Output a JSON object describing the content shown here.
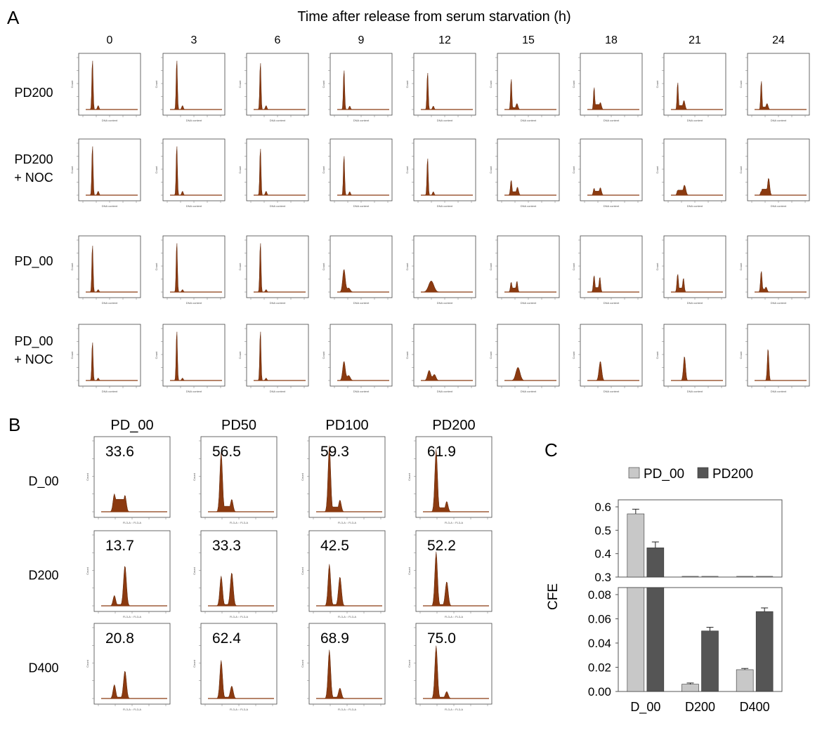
{
  "panels": {
    "a": "A",
    "b": "B",
    "c": "C"
  },
  "panel_a": {
    "title": "Time after release from serum starvation (h)",
    "time_points": [
      "0",
      "3",
      "6",
      "9",
      "12",
      "15",
      "18",
      "21",
      "24"
    ],
    "rows": [
      "PD200",
      "PD200\n+ NOC",
      "PD_00",
      "PD_00\n+ NOC"
    ],
    "mini_xlabel": "DNA content",
    "mini_ylabel": "Count"
  },
  "panel_b": {
    "columns": [
      "PD_00",
      "PD50",
      "PD100",
      "PD200"
    ],
    "rows": [
      "D_00",
      "D200",
      "D400"
    ],
    "mini_xlabel": "FL3-A :: FL3-A",
    "mini_ylabel": "Count",
    "values": [
      [
        "33.6",
        "56.5",
        "59.3",
        "61.9"
      ],
      [
        "13.7",
        "33.3",
        "42.5",
        "52.2"
      ],
      [
        "20.8",
        "62.4",
        "68.9",
        "75.0"
      ]
    ]
  },
  "colors": {
    "histogram": "#8B3A10",
    "histogram_stroke": "#5e2408",
    "bar_light": "#c8c8c8",
    "bar_dark": "#555555"
  },
  "chart_data": {
    "type": "bar",
    "categories": [
      "D_00",
      "D200",
      "D400"
    ],
    "series": [
      {
        "name": "PD_00",
        "values": [
          0.57,
          0.006,
          0.018
        ],
        "errors": [
          0.02,
          0.001,
          0.001
        ],
        "color": "#c8c8c8"
      },
      {
        "name": "PD200",
        "values": [
          0.425,
          0.05,
          0.066
        ],
        "errors": [
          0.025,
          0.003,
          0.003
        ],
        "color": "#555555"
      }
    ],
    "ylabel": "CFE",
    "xlabel": "",
    "axis_break": true,
    "upper_ylim": [
      0.3,
      0.6
    ],
    "upper_ticks": [
      "0.6",
      "0.5",
      "0.4",
      "0.3"
    ],
    "lower_ylim": [
      0,
      0.08
    ],
    "lower_ticks": [
      "0.08",
      "0.06",
      "0.04",
      "0.02",
      "0.00"
    ],
    "legend_position": "top",
    "grid": false
  }
}
